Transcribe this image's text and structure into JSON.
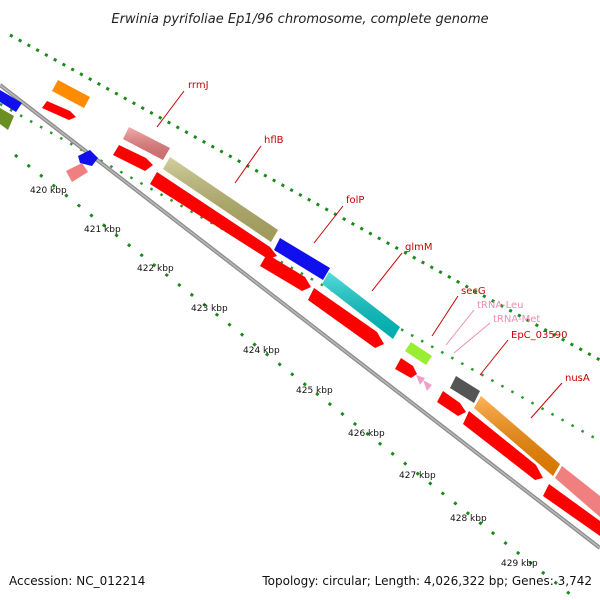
{
  "title": "Erwinia pyrifoliae Ep1/96 chromosome, complete genome",
  "accession_text": "Accession: NC_012214",
  "topology_text": "Topology: circular; Length: 4,026,322 bp; Genes: 3,742",
  "ticks": [
    "420 kbp",
    "421 kbp",
    "422 kbp",
    "423 kbp",
    "424 kbp",
    "425 kbp",
    "426 kbp",
    "427 kbp",
    "428 kbp",
    "429 kbp"
  ],
  "gene_labels": [
    {
      "name": "rrmJ",
      "color": "#cc0000"
    },
    {
      "name": "hflB",
      "color": "#cc0000"
    },
    {
      "name": "folP",
      "color": "#cc0000"
    },
    {
      "name": "glmM",
      "color": "#cc0000"
    },
    {
      "name": "secG",
      "color": "#cc0000"
    },
    {
      "name": "tRNA-Leu",
      "color": "#f08cb4"
    },
    {
      "name": "tRNA-Met",
      "color": "#f08cb4"
    },
    {
      "name": "EpC_03590",
      "color": "#cc0000"
    },
    {
      "name": "nusA",
      "color": "#cc0000"
    }
  ],
  "colors": {
    "cds": "#ff0000",
    "backbone": "#8c8c8c",
    "gc_dots": "#1a8a1a",
    "label_line": "#cc0000",
    "trna": "#f0a0c8"
  }
}
